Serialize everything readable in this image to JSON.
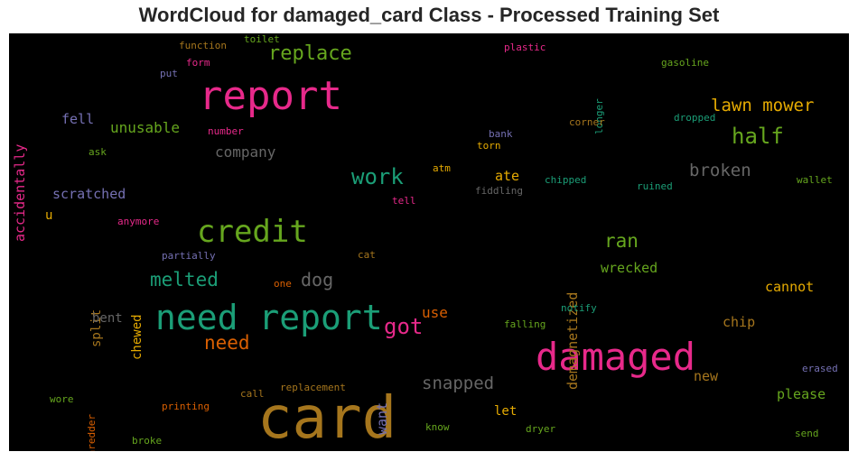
{
  "chart_data": {
    "type": "wordcloud",
    "title": "WordCloud for damaged_card Class - Processed Training Set",
    "background": "#000000",
    "palette": "Dark2",
    "words": [
      {
        "text": "card",
        "color": "#a6761d"
      },
      {
        "text": "report",
        "color": "#e7298a"
      },
      {
        "text": "damaged",
        "color": "#e7298a"
      },
      {
        "text": "need report",
        "color": "#1b9e77"
      },
      {
        "text": "credit",
        "color": "#66a61e"
      },
      {
        "text": "replace",
        "color": "#66a61e"
      },
      {
        "text": "half",
        "color": "#66a61e"
      },
      {
        "text": "work",
        "color": "#1b9e77"
      },
      {
        "text": "lawn mower",
        "color": "#e6ab02"
      },
      {
        "text": "broken",
        "color": "#666666"
      },
      {
        "text": "got",
        "color": "#e7298a"
      },
      {
        "text": "melted",
        "color": "#1b9e77"
      },
      {
        "text": "need",
        "color": "#d95f02"
      },
      {
        "text": "ran",
        "color": "#66a61e"
      },
      {
        "text": "dog",
        "color": "#666666"
      },
      {
        "text": "snapped",
        "color": "#666666"
      },
      {
        "text": "unusable",
        "color": "#66a61e"
      },
      {
        "text": "company",
        "color": "#666666"
      },
      {
        "text": "scratched",
        "color": "#7570b3"
      },
      {
        "text": "fell",
        "color": "#7570b3"
      },
      {
        "text": "accidentally",
        "color": "#e7298a"
      },
      {
        "text": "ate",
        "color": "#e6ab02"
      },
      {
        "text": "wrecked",
        "color": "#66a61e"
      },
      {
        "text": "demagnetized",
        "color": "#a6761d"
      },
      {
        "text": "use",
        "color": "#d95f02"
      },
      {
        "text": "cannot",
        "color": "#e6ab02"
      },
      {
        "text": "chip",
        "color": "#a6761d"
      },
      {
        "text": "please",
        "color": "#66a61e"
      },
      {
        "text": "new",
        "color": "#a6761d"
      },
      {
        "text": "want",
        "color": "#7570b3"
      },
      {
        "text": "let",
        "color": "#e6ab02"
      },
      {
        "text": "split",
        "color": "#a6761d"
      },
      {
        "text": "chewed",
        "color": "#e6ab02"
      },
      {
        "text": "bent",
        "color": "#666666"
      },
      {
        "text": "u",
        "color": "#e6ab02"
      },
      {
        "text": "function",
        "color": "#a6761d"
      },
      {
        "text": "toilet",
        "color": "#66a61e"
      },
      {
        "text": "plastic",
        "color": "#e7298a"
      },
      {
        "text": "form",
        "color": "#e7298a"
      },
      {
        "text": "put",
        "color": "#7570b3"
      },
      {
        "text": "gasoline",
        "color": "#66a61e"
      },
      {
        "text": "longer",
        "color": "#1b9e77"
      },
      {
        "text": "corner",
        "color": "#a6761d"
      },
      {
        "text": "dropped",
        "color": "#1b9e77"
      },
      {
        "text": "number",
        "color": "#e7298a"
      },
      {
        "text": "bank",
        "color": "#7570b3"
      },
      {
        "text": "torn",
        "color": "#e6ab02"
      },
      {
        "text": "ask",
        "color": "#66a61e"
      },
      {
        "text": "atm",
        "color": "#e6ab02"
      },
      {
        "text": "fiddling",
        "color": "#666666"
      },
      {
        "text": "chipped",
        "color": "#1b9e77"
      },
      {
        "text": "ruined",
        "color": "#1b9e77"
      },
      {
        "text": "wallet",
        "color": "#66a61e"
      },
      {
        "text": "tell",
        "color": "#e7298a"
      },
      {
        "text": "anymore",
        "color": "#e7298a"
      },
      {
        "text": "partially",
        "color": "#7570b3"
      },
      {
        "text": "cat",
        "color": "#a6761d"
      },
      {
        "text": "one",
        "color": "#d95f02"
      },
      {
        "text": "notify",
        "color": "#1b9e77"
      },
      {
        "text": "falling",
        "color": "#66a61e"
      },
      {
        "text": "erased",
        "color": "#7570b3"
      },
      {
        "text": "shredder",
        "color": "#d95f02"
      },
      {
        "text": "wore",
        "color": "#66a61e"
      },
      {
        "text": "printing",
        "color": "#d95f02"
      },
      {
        "text": "call",
        "color": "#a6761d"
      },
      {
        "text": "replacement",
        "color": "#a6761d"
      },
      {
        "text": "know",
        "color": "#66a61e"
      },
      {
        "text": "dryer",
        "color": "#66a61e"
      },
      {
        "text": "broke",
        "color": "#66a61e"
      },
      {
        "text": "send",
        "color": "#66a61e"
      }
    ]
  }
}
